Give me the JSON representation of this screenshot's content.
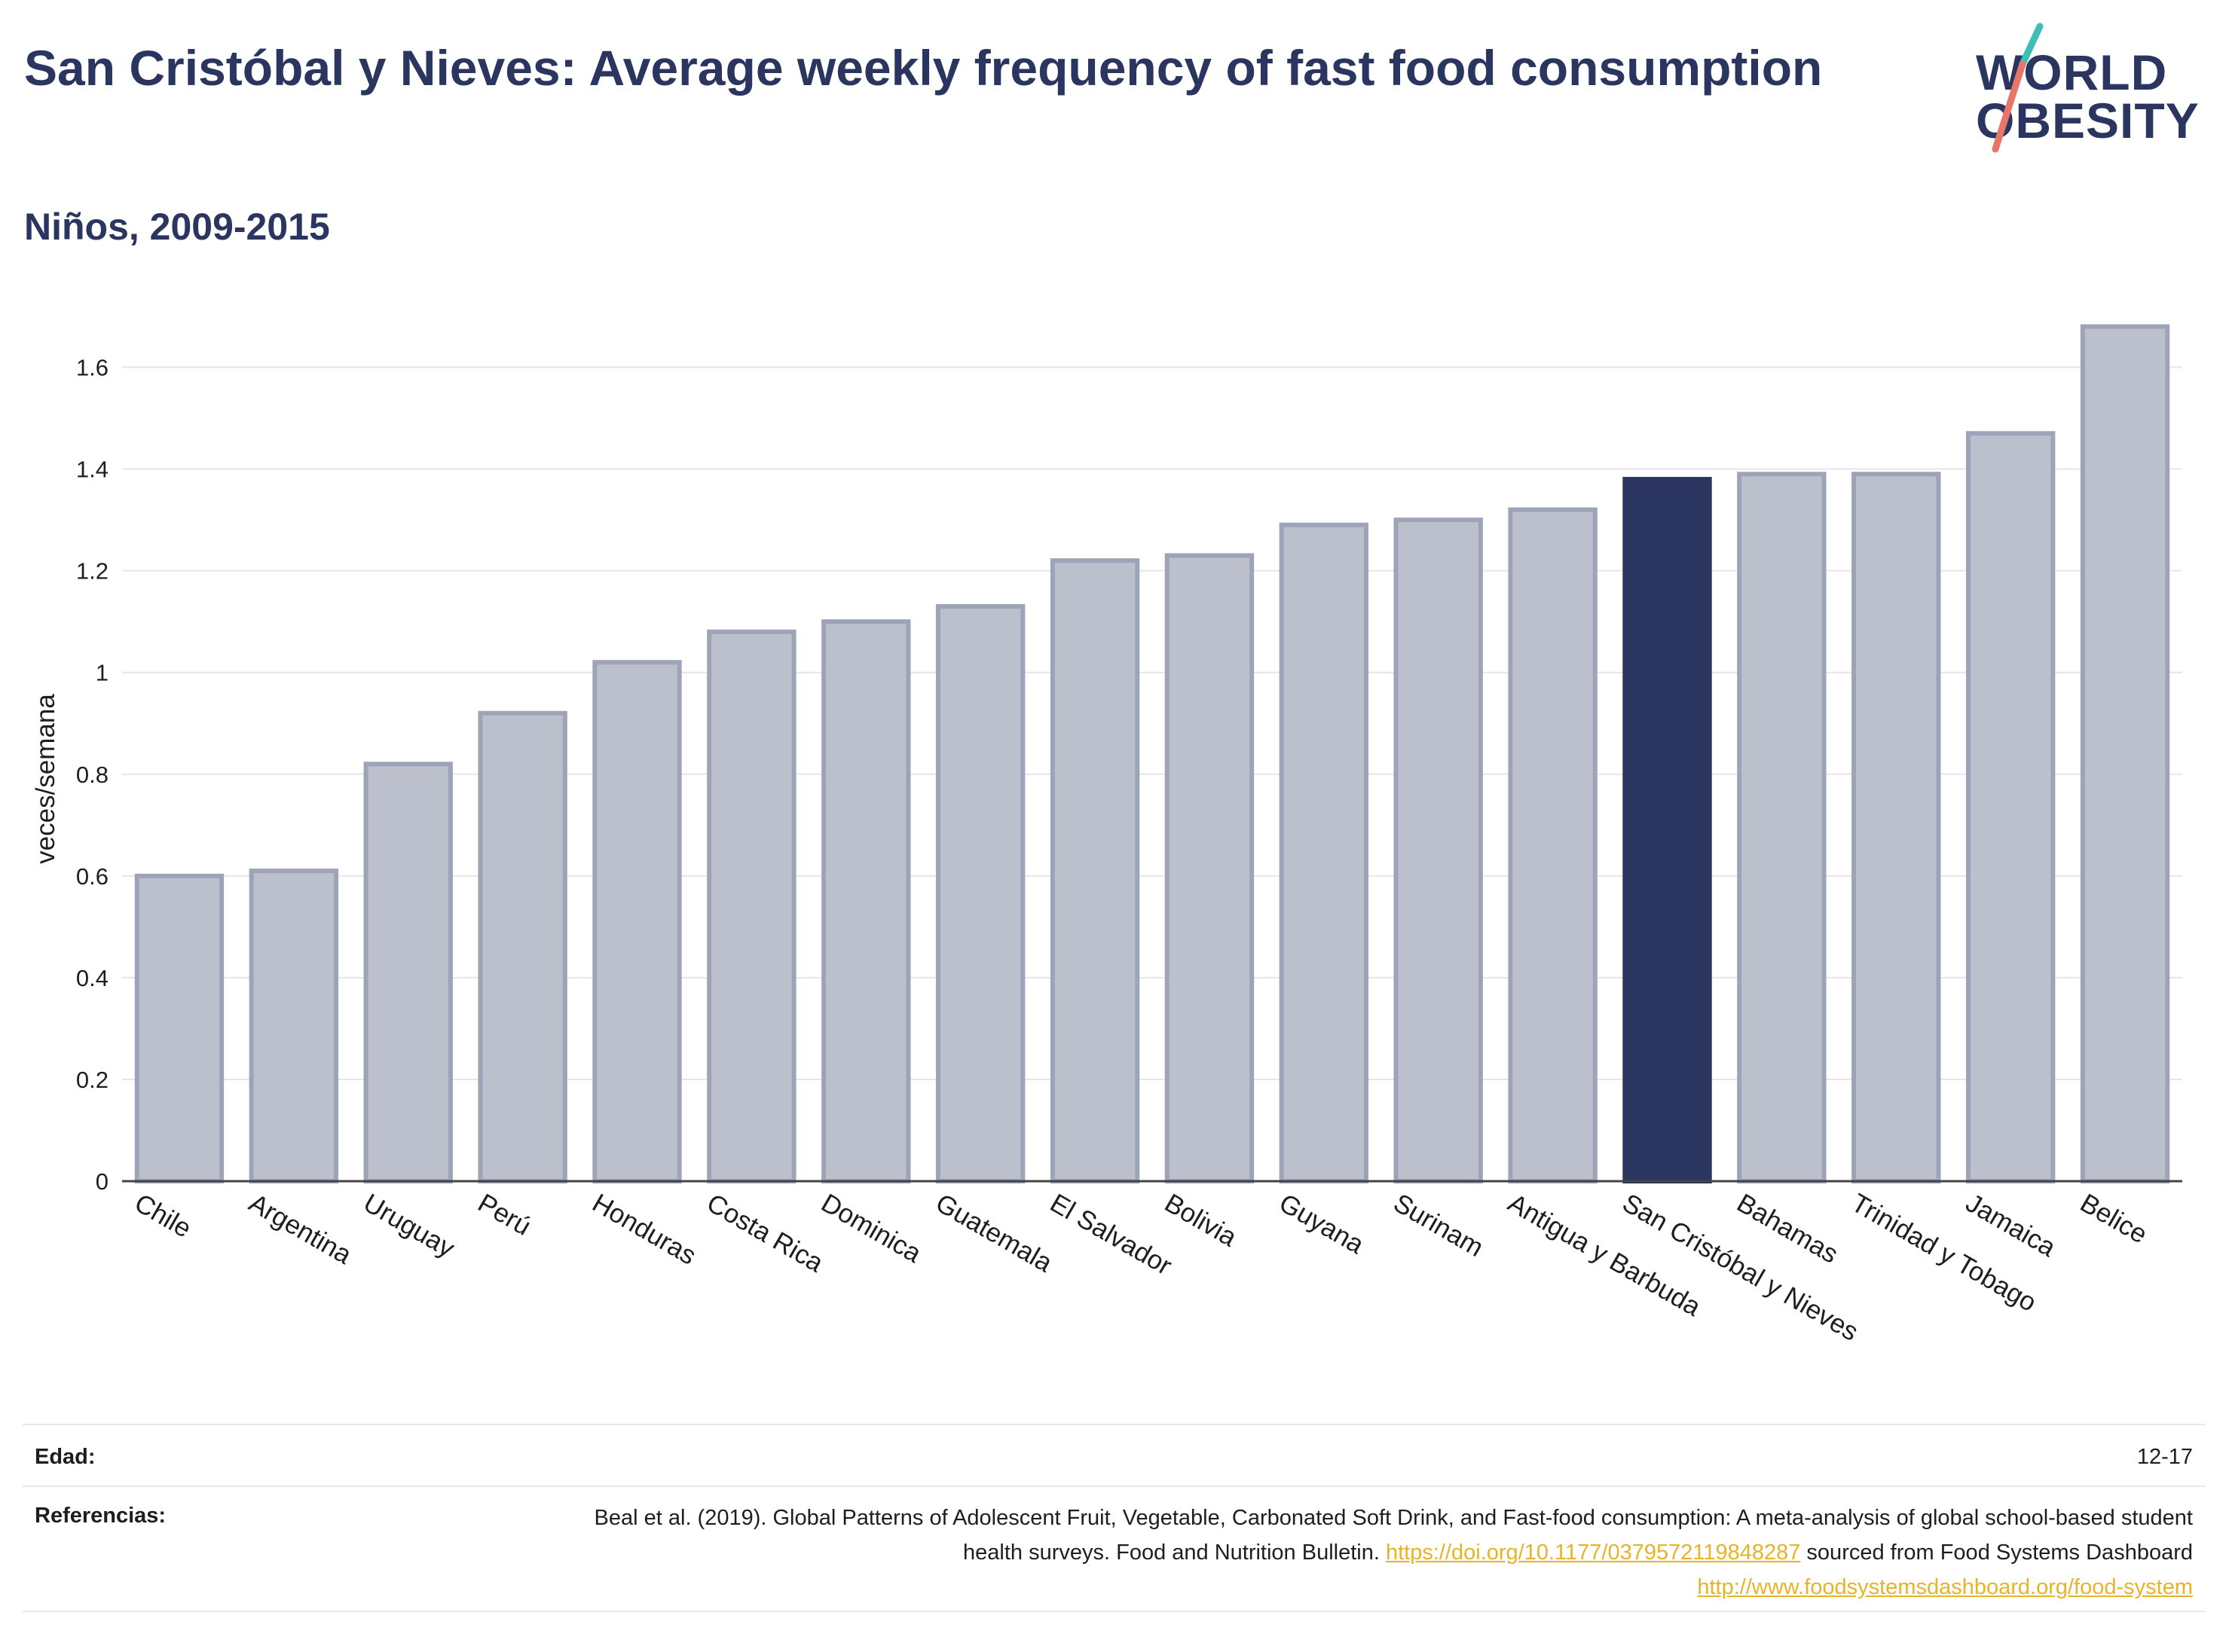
{
  "header": {
    "title": "San Cristóbal y Nieves: Average weekly frequency of fast food consumption",
    "subtitle": "Niños, 2009-2015"
  },
  "logo": {
    "line1": "WORLD",
    "line2": "OBESITY"
  },
  "colors": {
    "highlight": "#2a3560",
    "bar_fill": "#bcc0cd",
    "bar_stroke": "#9ea4b8",
    "title": "#2a3560",
    "link": "#e8b325"
  },
  "chart_data": {
    "type": "bar",
    "title": "San Cristóbal y Nieves: Average weekly frequency of fast food consumption",
    "subtitle": "Niños, 2009-2015",
    "xlabel": "",
    "ylabel": "veces/semana",
    "ylim": [
      0,
      1.7
    ],
    "yticks": [
      0,
      0.2,
      0.4,
      0.6,
      0.8,
      1,
      1.2,
      1.4,
      1.6
    ],
    "ytick_labels": [
      "0",
      "0.2",
      "0.4",
      "0.6",
      "0.8",
      "1",
      "1.2",
      "1.4",
      "1.6"
    ],
    "grid": true,
    "categories": [
      "Chile",
      "Argentina",
      "Uruguay",
      "Perú",
      "Honduras",
      "Costa Rica",
      "Dominica",
      "Guatemala",
      "El Salvador",
      "Bolivia",
      "Guyana",
      "Surinam",
      "Antigua y Barbuda",
      "San Cristóbal y Nieves",
      "Bahamas",
      "Trinidad y Tobago",
      "Jamaica",
      "Belice"
    ],
    "values": [
      0.6,
      0.61,
      0.82,
      0.92,
      1.02,
      1.08,
      1.1,
      1.13,
      1.22,
      1.23,
      1.29,
      1.3,
      1.32,
      1.38,
      1.39,
      1.39,
      1.47,
      1.68
    ],
    "highlight": "San Cristóbal y Nieves"
  },
  "footer": {
    "age_label": "Edad:",
    "age_value": "12-17",
    "ref_label": "Referencias:",
    "ref_text_1": "Beal et al. (2019). Global Patterns of Adolescent Fruit, Vegetable, Carbonated Soft Drink, and Fast-food consumption: A meta-analysis of global school-based student health surveys. Food and Nutrition Bulletin. ",
    "ref_link_1": "https://doi.org/10.1177/0379572119848287",
    "ref_text_2": " sourced from Food Systems Dashboard ",
    "ref_link_2": "http://www.foodsystemsdashboard.org/food-system"
  }
}
